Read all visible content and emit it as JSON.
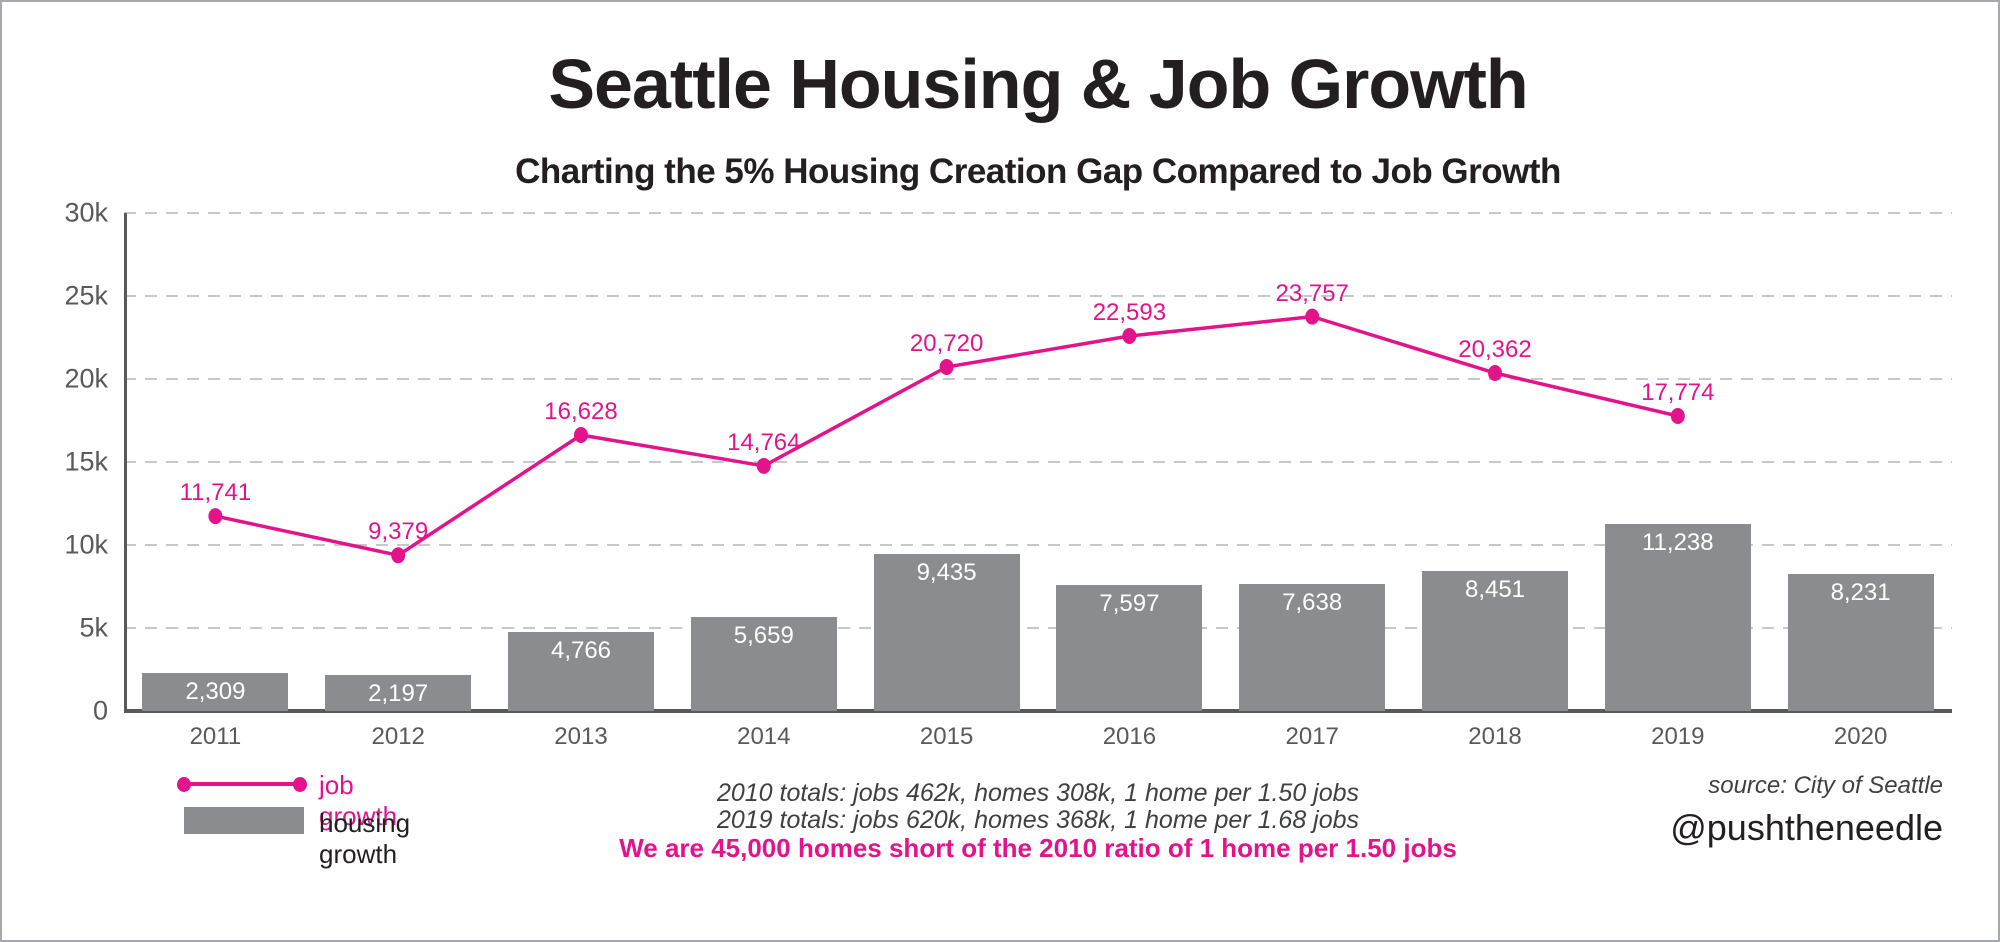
{
  "header": {
    "title": "Seattle Housing & Job Growth",
    "subtitle": "Charting the 5% Housing Creation Gap Compared to Job Growth"
  },
  "chart_data": {
    "type": "combo",
    "categories": [
      "2011",
      "2012",
      "2013",
      "2014",
      "2015",
      "2016",
      "2017",
      "2018",
      "2019",
      "2020"
    ],
    "series": [
      {
        "name": "job growth",
        "type": "line",
        "color": "#e3138c",
        "values": [
          11741,
          9379,
          16628,
          14764,
          20720,
          22593,
          23757,
          20362,
          17774,
          null
        ],
        "labels": [
          "11,741",
          "9,379",
          "16,628",
          "14,764",
          "20,720",
          "22,593",
          "23,757",
          "20,362",
          "17,774",
          null
        ]
      },
      {
        "name": "housing growth",
        "type": "bar",
        "color": "#8a8c8f",
        "values": [
          2309,
          2197,
          4766,
          5659,
          9435,
          7597,
          7638,
          8451,
          11238,
          8231
        ],
        "labels": [
          "2,309",
          "2,197",
          "4,766",
          "5,659",
          "9,435",
          "7,597",
          "7,638",
          "8,451",
          "11,238",
          "8,231"
        ]
      }
    ],
    "ylim": [
      0,
      30000
    ],
    "yticks": [
      {
        "value": 0,
        "label": "0"
      },
      {
        "value": 5000,
        "label": "5k"
      },
      {
        "value": 10000,
        "label": "10k"
      },
      {
        "value": 15000,
        "label": "15k"
      },
      {
        "value": 20000,
        "label": "20k"
      },
      {
        "value": 25000,
        "label": "25k"
      },
      {
        "value": 30000,
        "label": "30k"
      }
    ],
    "gridlines": [
      5000,
      10000,
      15000,
      20000,
      25000,
      30000
    ],
    "grid_style": "dashed",
    "legend_position": "bottom-left",
    "bar_label_color": "#ffffff",
    "axis_color": "#58595b",
    "gridline_color": "#c7c8ca"
  },
  "legend": {
    "line_label": "job growth",
    "bar_label": "housing growth"
  },
  "notes": {
    "line1": "2010 totals: jobs 462k, homes 308k, 1 home per 1.50 jobs",
    "line2": "2019 totals: jobs 620k, homes 368k, 1 home per 1.68 jobs",
    "line3": "We are 45,000 homes short of the 2010 ratio of 1 home per 1.50 jobs"
  },
  "footer": {
    "source": "source: City of Seattle",
    "handle": "@pushtheneedle"
  }
}
